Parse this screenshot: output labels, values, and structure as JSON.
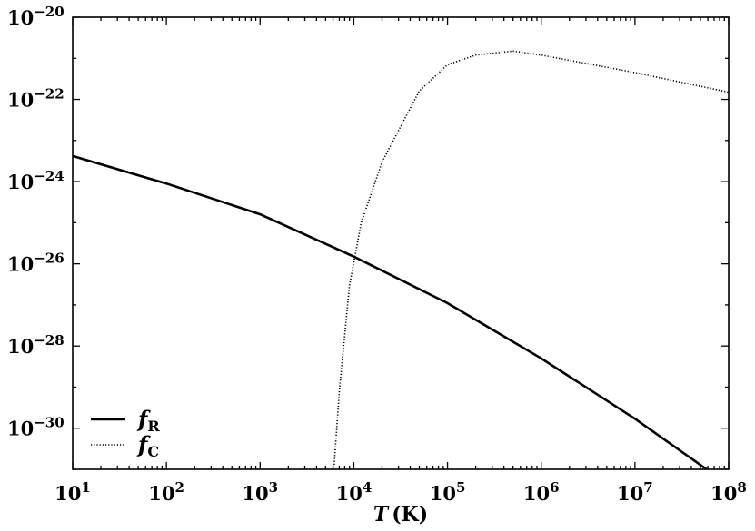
{
  "chart_data": {
    "type": "line",
    "xlabel_symbol": "T",
    "xlabel_unit": "(K)",
    "ylabel": "",
    "xscale": "log",
    "yscale": "log",
    "xlim": [
      10,
      100000000
    ],
    "ylim": [
      1e-31,
      1e-20
    ],
    "x_ticks": [
      {
        "value": 10,
        "base": "10",
        "exp": "1"
      },
      {
        "value": 100,
        "base": "10",
        "exp": "2"
      },
      {
        "value": 1000,
        "base": "10",
        "exp": "3"
      },
      {
        "value": 10000,
        "base": "10",
        "exp": "4"
      },
      {
        "value": 100000,
        "base": "10",
        "exp": "5"
      },
      {
        "value": 1000000,
        "base": "10",
        "exp": "6"
      },
      {
        "value": 10000000,
        "base": "10",
        "exp": "7"
      },
      {
        "value": 100000000,
        "base": "10",
        "exp": "8"
      }
    ],
    "y_ticks": [
      {
        "value": 1e-30,
        "base": "10",
        "exp": "−30"
      },
      {
        "value": 1e-28,
        "base": "10",
        "exp": "−28"
      },
      {
        "value": 1e-26,
        "base": "10",
        "exp": "−26"
      },
      {
        "value": 1e-24,
        "base": "10",
        "exp": "−24"
      },
      {
        "value": 1e-22,
        "base": "10",
        "exp": "−22"
      },
      {
        "value": 1e-20,
        "base": "10",
        "exp": "−20"
      }
    ],
    "legend_position": "lower-left",
    "grid": false,
    "series": [
      {
        "name": "f",
        "subscript": "R",
        "style": "solid",
        "color": "#000000",
        "x": [
          10,
          100,
          1000,
          10000,
          100000,
          1000000,
          10000000,
          100000000
        ],
        "y": [
          4.2e-24,
          9e-25,
          1.6e-25,
          1.5e-26,
          1.1e-27,
          5e-29,
          1.7e-30,
          4.2e-32
        ]
      },
      {
        "name": "f",
        "subscript": "C",
        "style": "dotted",
        "color": "#000000",
        "x": [
          5900,
          7000,
          9000,
          12000,
          20000,
          50000,
          100000,
          200000,
          500000,
          1000000,
          10000000,
          100000000
        ],
        "y": [
          3e-32,
          8e-30,
          3e-27,
          1e-25,
          3e-24,
          1.6e-22,
          7e-22,
          1.2e-21,
          1.5e-21,
          1.2e-21,
          4.5e-22,
          1.5e-22
        ]
      }
    ]
  }
}
